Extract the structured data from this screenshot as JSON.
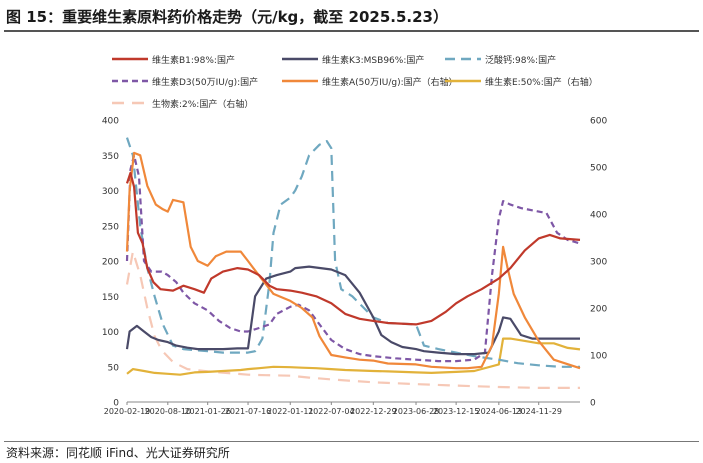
{
  "title": "图 15：重要维生素原料药价格走势（元/kg，截至 2025.5.23）",
  "source": "资料来源：同花顺 iFind、光大证券研究所",
  "chart_data": {
    "type": "line",
    "x_ticks": [
      "2020-02-19",
      "2020-08-10",
      "2021-01-26",
      "2021-07-16",
      "2022-01-11",
      "2022-07-04",
      "2022-12-29",
      "2023-06-28",
      "2023-12-15",
      "2024-06-13",
      "2024-11-29"
    ],
    "x_range": [
      "2020-02-19",
      "2025-05-23"
    ],
    "y_left": {
      "ticks": [
        0,
        50,
        100,
        150,
        200,
        250,
        300,
        350,
        400
      ],
      "range": [
        0,
        400
      ]
    },
    "y_right": {
      "ticks": [
        0,
        100,
        200,
        300,
        400,
        500,
        600
      ],
      "range": [
        0,
        600
      ]
    },
    "legend": [
      {
        "key": "b1",
        "label": "维生素B1:98%:国产"
      },
      {
        "key": "k3",
        "label": "维生素K3:MSB96%:国产"
      },
      {
        "key": "pan",
        "label": "泛酸钙:98%:国产"
      },
      {
        "key": "d3",
        "label": "维生素D3(50万IU/g):国产"
      },
      {
        "key": "a",
        "label": "维生素A(50万IU/g):国产（右轴）"
      },
      {
        "key": "e",
        "label": "维生素E:50%:国产（右轴）"
      },
      {
        "key": "bio",
        "label": "生物素:2%:国产（右轴）"
      }
    ],
    "series": [
      {
        "key": "b1",
        "axis": "left",
        "color": "#C0392B",
        "dash": "",
        "points": [
          [
            "2020-02-19",
            310
          ],
          [
            "2020-03-05",
            325
          ],
          [
            "2020-03-20",
            305
          ],
          [
            "2020-04-05",
            240
          ],
          [
            "2020-04-25",
            225
          ],
          [
            "2020-05-15",
            190
          ],
          [
            "2020-06-10",
            170
          ],
          [
            "2020-07-10",
            160
          ],
          [
            "2020-09-01",
            158
          ],
          [
            "2020-10-15",
            165
          ],
          [
            "2020-12-01",
            160
          ],
          [
            "2021-01-10",
            155
          ],
          [
            "2021-02-10",
            175
          ],
          [
            "2021-04-01",
            185
          ],
          [
            "2021-06-01",
            190
          ],
          [
            "2021-07-16",
            188
          ],
          [
            "2021-09-01",
            180
          ],
          [
            "2021-10-15",
            165
          ],
          [
            "2021-11-15",
            160
          ],
          [
            "2022-01-11",
            158
          ],
          [
            "2022-03-01",
            155
          ],
          [
            "2022-05-01",
            150
          ],
          [
            "2022-07-04",
            140
          ],
          [
            "2022-09-01",
            125
          ],
          [
            "2022-11-01",
            118
          ],
          [
            "2022-12-29",
            115
          ],
          [
            "2023-03-01",
            112
          ],
          [
            "2023-06-28",
            110
          ],
          [
            "2023-09-01",
            115
          ],
          [
            "2023-11-01",
            128
          ],
          [
            "2023-12-15",
            140
          ],
          [
            "2024-02-01",
            150
          ],
          [
            "2024-04-01",
            160
          ],
          [
            "2024-06-13",
            175
          ],
          [
            "2024-08-01",
            190
          ],
          [
            "2024-10-01",
            215
          ],
          [
            "2024-11-29",
            232
          ],
          [
            "2025-01-15",
            237
          ],
          [
            "2025-03-01",
            232
          ],
          [
            "2025-05-23",
            230
          ]
        ]
      },
      {
        "key": "k3",
        "axis": "left",
        "color": "#4A4A68",
        "dash": "",
        "points": [
          [
            "2020-02-19",
            75
          ],
          [
            "2020-03-01",
            100
          ],
          [
            "2020-04-01",
            108
          ],
          [
            "2020-05-01",
            100
          ],
          [
            "2020-06-01",
            92
          ],
          [
            "2020-07-01",
            88
          ],
          [
            "2020-08-10",
            85
          ],
          [
            "2020-09-15",
            80
          ],
          [
            "2020-11-01",
            77
          ],
          [
            "2020-12-15",
            75
          ],
          [
            "2021-01-26",
            75
          ],
          [
            "2021-04-01",
            75
          ],
          [
            "2021-06-01",
            76
          ],
          [
            "2021-07-16",
            76
          ],
          [
            "2021-08-15",
            150
          ],
          [
            "2021-10-01",
            175
          ],
          [
            "2021-11-15",
            180
          ],
          [
            "2022-01-11",
            185
          ],
          [
            "2022-02-01",
            190
          ],
          [
            "2022-04-01",
            192
          ],
          [
            "2022-07-04",
            188
          ],
          [
            "2022-09-01",
            180
          ],
          [
            "2022-11-01",
            155
          ],
          [
            "2022-12-29",
            120
          ],
          [
            "2023-02-01",
            95
          ],
          [
            "2023-03-15",
            85
          ],
          [
            "2023-05-01",
            78
          ],
          [
            "2023-06-28",
            75
          ],
          [
            "2023-08-01",
            72
          ],
          [
            "2023-10-01",
            70
          ],
          [
            "2023-12-15",
            68
          ],
          [
            "2024-03-01",
            68
          ],
          [
            "2024-05-01",
            70
          ],
          [
            "2024-06-13",
            100
          ],
          [
            "2024-07-01",
            120
          ],
          [
            "2024-08-01",
            118
          ],
          [
            "2024-09-15",
            95
          ],
          [
            "2024-11-01",
            90
          ],
          [
            "2024-11-29",
            90
          ],
          [
            "2025-03-01",
            90
          ],
          [
            "2025-05-23",
            90
          ]
        ]
      },
      {
        "key": "pan",
        "axis": "left",
        "color": "#6FA8C0",
        "dash": "10 6",
        "points": [
          [
            "2020-02-19",
            375
          ],
          [
            "2020-03-15",
            350
          ],
          [
            "2020-04-15",
            250
          ],
          [
            "2020-05-15",
            190
          ],
          [
            "2020-06-15",
            150
          ],
          [
            "2020-07-20",
            110
          ],
          [
            "2020-09-01",
            80
          ],
          [
            "2020-10-15",
            75
          ],
          [
            "2021-01-26",
            72
          ],
          [
            "2021-04-01",
            70
          ],
          [
            "2021-07-16",
            70
          ],
          [
            "2021-08-15",
            72
          ],
          [
            "2021-09-15",
            90
          ],
          [
            "2021-10-15",
            170
          ],
          [
            "2021-11-01",
            240
          ],
          [
            "2021-12-01",
            280
          ],
          [
            "2022-01-11",
            290
          ],
          [
            "2022-02-01",
            300
          ],
          [
            "2022-03-01",
            320
          ],
          [
            "2022-04-01",
            350
          ],
          [
            "2022-05-15",
            365
          ],
          [
            "2022-06-15",
            370
          ],
          [
            "2022-07-04",
            360
          ],
          [
            "2022-07-20",
            200
          ],
          [
            "2022-08-15",
            160
          ],
          [
            "2022-10-01",
            150
          ],
          [
            "2022-12-29",
            120
          ],
          [
            "2023-03-01",
            112
          ],
          [
            "2023-06-28",
            110
          ],
          [
            "2023-08-01",
            80
          ],
          [
            "2023-10-01",
            75
          ],
          [
            "2023-12-15",
            70
          ],
          [
            "2024-03-01",
            65
          ],
          [
            "2024-06-13",
            60
          ],
          [
            "2024-09-01",
            55
          ],
          [
            "2024-11-29",
            52
          ],
          [
            "2025-03-01",
            50
          ],
          [
            "2025-05-23",
            50
          ]
        ]
      },
      {
        "key": "d3",
        "axis": "left",
        "color": "#7E57A6",
        "dash": "6 4",
        "points": [
          [
            "2020-02-19",
            200
          ],
          [
            "2020-03-05",
            330
          ],
          [
            "2020-03-20",
            350
          ],
          [
            "2020-04-10",
            320
          ],
          [
            "2020-05-01",
            200
          ],
          [
            "2020-06-01",
            185
          ],
          [
            "2020-07-15",
            185
          ],
          [
            "2020-08-10",
            180
          ],
          [
            "2020-09-15",
            170
          ],
          [
            "2020-10-15",
            155
          ],
          [
            "2020-12-01",
            140
          ],
          [
            "2021-01-26",
            130
          ],
          [
            "2021-03-15",
            115
          ],
          [
            "2021-05-01",
            105
          ],
          [
            "2021-06-15",
            100
          ],
          [
            "2021-07-16",
            100
          ],
          [
            "2021-09-01",
            105
          ],
          [
            "2021-10-15",
            110
          ],
          [
            "2021-11-15",
            125
          ],
          [
            "2022-01-11",
            135
          ],
          [
            "2022-02-15",
            138
          ],
          [
            "2022-04-01",
            130
          ],
          [
            "2022-05-15",
            110
          ],
          [
            "2022-07-04",
            88
          ],
          [
            "2022-09-01",
            75
          ],
          [
            "2022-11-01",
            68
          ],
          [
            "2022-12-29",
            65
          ],
          [
            "2023-04-01",
            62
          ],
          [
            "2023-06-28",
            60
          ],
          [
            "2023-10-01",
            58
          ],
          [
            "2023-12-15",
            58
          ],
          [
            "2024-03-01",
            60
          ],
          [
            "2024-04-15",
            70
          ],
          [
            "2024-05-15",
            180
          ],
          [
            "2024-06-13",
            260
          ],
          [
            "2024-07-01",
            285
          ],
          [
            "2024-08-01",
            280
          ],
          [
            "2024-09-15",
            275
          ],
          [
            "2024-11-29",
            270
          ],
          [
            "2025-01-01",
            268
          ],
          [
            "2025-02-15",
            240
          ],
          [
            "2025-04-01",
            230
          ],
          [
            "2025-05-23",
            225
          ]
        ]
      },
      {
        "key": "a",
        "axis": "right",
        "color": "#F0883A",
        "dash": "",
        "points": [
          [
            "2020-02-19",
            320
          ],
          [
            "2020-03-01",
            450
          ],
          [
            "2020-03-20",
            530
          ],
          [
            "2020-04-15",
            525
          ],
          [
            "2020-05-15",
            460
          ],
          [
            "2020-06-20",
            420
          ],
          [
            "2020-07-20",
            410
          ],
          [
            "2020-08-10",
            405
          ],
          [
            "2020-09-01",
            430
          ],
          [
            "2020-10-15",
            425
          ],
          [
            "2020-11-15",
            330
          ],
          [
            "2020-12-15",
            300
          ],
          [
            "2021-01-26",
            290
          ],
          [
            "2021-03-01",
            310
          ],
          [
            "2021-04-15",
            320
          ],
          [
            "2021-05-15",
            320
          ],
          [
            "2021-06-15",
            320
          ],
          [
            "2021-07-16",
            300
          ],
          [
            "2021-08-15",
            280
          ],
          [
            "2021-09-15",
            260
          ],
          [
            "2021-11-01",
            230
          ],
          [
            "2022-01-11",
            215
          ],
          [
            "2022-03-01",
            200
          ],
          [
            "2022-04-15",
            180
          ],
          [
            "2022-05-15",
            140
          ],
          [
            "2022-07-04",
            100
          ],
          [
            "2022-09-01",
            95
          ],
          [
            "2022-11-01",
            90
          ],
          [
            "2022-12-29",
            88
          ],
          [
            "2023-03-01",
            82
          ],
          [
            "2023-06-28",
            80
          ],
          [
            "2023-09-01",
            75
          ],
          [
            "2023-12-15",
            72
          ],
          [
            "2024-02-01",
            72
          ],
          [
            "2024-04-01",
            75
          ],
          [
            "2024-05-15",
            120
          ],
          [
            "2024-06-13",
            230
          ],
          [
            "2024-07-01",
            330
          ],
          [
            "2024-07-20",
            285
          ],
          [
            "2024-08-15",
            230
          ],
          [
            "2024-10-01",
            180
          ],
          [
            "2024-11-29",
            130
          ],
          [
            "2025-02-01",
            90
          ],
          [
            "2025-05-23",
            72
          ]
        ]
      },
      {
        "key": "e",
        "axis": "right",
        "color": "#E2B23A",
        "dash": "",
        "points": [
          [
            "2020-02-19",
            60
          ],
          [
            "2020-03-15",
            70
          ],
          [
            "2020-05-01",
            66
          ],
          [
            "2020-06-15",
            62
          ],
          [
            "2020-08-10",
            60
          ],
          [
            "2020-10-01",
            58
          ],
          [
            "2020-12-01",
            63
          ],
          [
            "2021-01-26",
            64
          ],
          [
            "2021-04-01",
            66
          ],
          [
            "2021-06-15",
            68
          ],
          [
            "2021-07-16",
            70
          ],
          [
            "2021-09-01",
            72
          ],
          [
            "2021-11-01",
            75
          ],
          [
            "2022-01-11",
            74
          ],
          [
            "2022-03-01",
            73
          ],
          [
            "2022-05-01",
            72
          ],
          [
            "2022-07-04",
            70
          ],
          [
            "2022-09-01",
            68
          ],
          [
            "2022-11-01",
            67
          ],
          [
            "2022-12-29",
            66
          ],
          [
            "2023-03-01",
            65
          ],
          [
            "2023-06-28",
            63
          ],
          [
            "2023-09-01",
            62
          ],
          [
            "2023-12-15",
            64
          ],
          [
            "2024-03-01",
            66
          ],
          [
            "2024-06-13",
            80
          ],
          [
            "2024-07-01",
            135
          ],
          [
            "2024-08-01",
            135
          ],
          [
            "2024-10-01",
            130
          ],
          [
            "2024-11-29",
            125
          ],
          [
            "2025-02-01",
            125
          ],
          [
            "2025-04-01",
            115
          ],
          [
            "2025-05-23",
            112
          ]
        ]
      },
      {
        "key": "bio",
        "axis": "right",
        "color": "#F6C8B6",
        "dash": "12 8",
        "points": [
          [
            "2020-02-19",
            250
          ],
          [
            "2020-03-15",
            320
          ],
          [
            "2020-04-15",
            270
          ],
          [
            "2020-05-15",
            200
          ],
          [
            "2020-06-15",
            140
          ],
          [
            "2020-07-15",
            110
          ],
          [
            "2020-09-01",
            85
          ],
          [
            "2020-11-01",
            70
          ],
          [
            "2021-01-26",
            65
          ],
          [
            "2021-06-01",
            60
          ],
          [
            "2021-07-16",
            58
          ],
          [
            "2021-10-01",
            57
          ],
          [
            "2022-01-11",
            56
          ],
          [
            "2022-04-01",
            52
          ],
          [
            "2022-07-04",
            48
          ],
          [
            "2022-10-01",
            45
          ],
          [
            "2022-12-29",
            42
          ],
          [
            "2023-06-28",
            38
          ],
          [
            "2023-12-15",
            35
          ],
          [
            "2024-06-13",
            32
          ],
          [
            "2024-11-29",
            30
          ],
          [
            "2025-05-23",
            30
          ]
        ]
      }
    ]
  }
}
